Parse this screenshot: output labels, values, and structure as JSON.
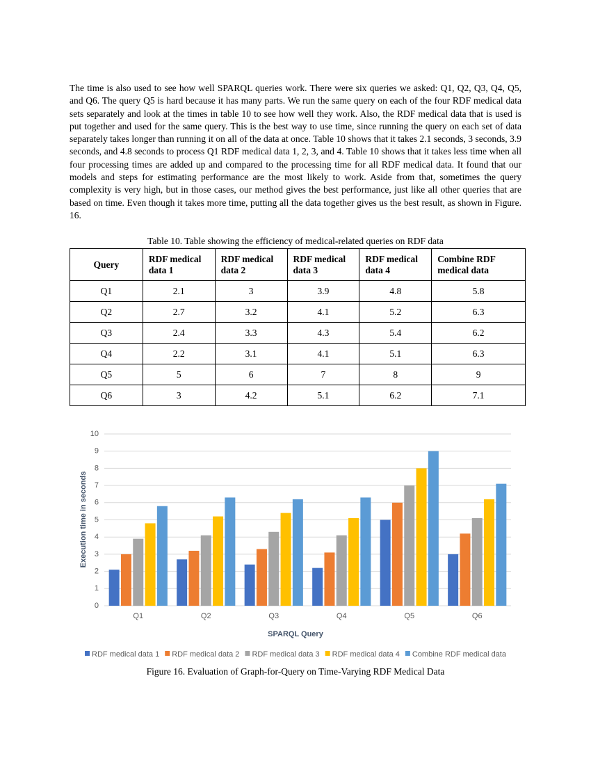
{
  "paragraph": "The time is also used to see how well SPARQL queries work. There were six queries we asked: Q1, Q2, Q3, Q4, Q5, and Q6. The query Q5 is hard because it has many parts. We run the same query on each of the four RDF medical data sets separately and look at the times in table 10 to see how well they work. Also, the RDF medical data that is used is put together and used for the same query. This is the best way to use time, since running the query on each set of data separately takes longer than running it on all of the data at once. Table 10 shows that it takes 2.1 seconds, 3 seconds, 3.9 seconds, and 4.8 seconds to process Q1 RDF medical data 1, 2, 3, and 4. Table 10 shows that it takes less time when all four processing times are added up and compared to the processing time for all RDF medical data. It found that our models and steps for estimating performance are the most likely to work. Aside from that, sometimes the query complexity is very high, but in those cases, our method gives the best performance, just like all other queries that are based on time. Even though it takes more time, putting all the data together gives us the best result, as shown in Figure. 16.",
  "table": {
    "caption": "Table 10. Table showing the efficiency of medical-related queries on RDF data",
    "header": [
      "Query",
      "RDF medical data 1",
      "RDF medical data 2",
      "RDF medical data 3",
      "RDF medical data 4",
      "Combine RDF medical data"
    ],
    "rows": [
      [
        "Q1",
        2.1,
        3,
        3.9,
        4.8,
        5.8
      ],
      [
        "Q2",
        2.7,
        3.2,
        4.1,
        5.2,
        6.3
      ],
      [
        "Q3",
        2.4,
        3.3,
        4.3,
        5.4,
        6.2
      ],
      [
        "Q4",
        2.2,
        3.1,
        4.1,
        5.1,
        6.3
      ],
      [
        "Q5",
        5,
        6,
        7,
        8,
        9
      ],
      [
        "Q6",
        3,
        4.2,
        5.1,
        6.2,
        7.1
      ]
    ]
  },
  "chart_data": {
    "type": "bar",
    "categories": [
      "Q1",
      "Q2",
      "Q3",
      "Q4",
      "Q5",
      "Q6"
    ],
    "series": [
      {
        "name": "RDF medical data 1",
        "color": "#4472c4",
        "values": [
          2.1,
          2.7,
          2.4,
          2.2,
          5,
          3
        ]
      },
      {
        "name": "RDF medical data 2",
        "color": "#ed7d31",
        "values": [
          3,
          3.2,
          3.3,
          3.1,
          6,
          4.2
        ]
      },
      {
        "name": "RDF medical data 3",
        "color": "#a5a5a5",
        "values": [
          3.9,
          4.1,
          4.3,
          4.1,
          7,
          5.1
        ]
      },
      {
        "name": "RDF medical data 4",
        "color": "#ffc000",
        "values": [
          4.8,
          5.2,
          5.4,
          5.1,
          8,
          6.2
        ]
      },
      {
        "name": "Combine RDF medical data",
        "color": "#5b9bd5",
        "values": [
          5.8,
          6.3,
          6.2,
          6.3,
          9,
          7.1
        ]
      }
    ],
    "ylim": [
      0,
      10
    ],
    "yticks": [
      0,
      1,
      2,
      3,
      4,
      5,
      6,
      7,
      8,
      9,
      10
    ],
    "grid": true,
    "legend": "bottom",
    "x_label": "SPARQL Query",
    "y_label": "Execution time in seconds"
  },
  "figure_caption": "Figure 16. Evaluation of Graph-for-Query on Time-Varying RDF Medical Data"
}
